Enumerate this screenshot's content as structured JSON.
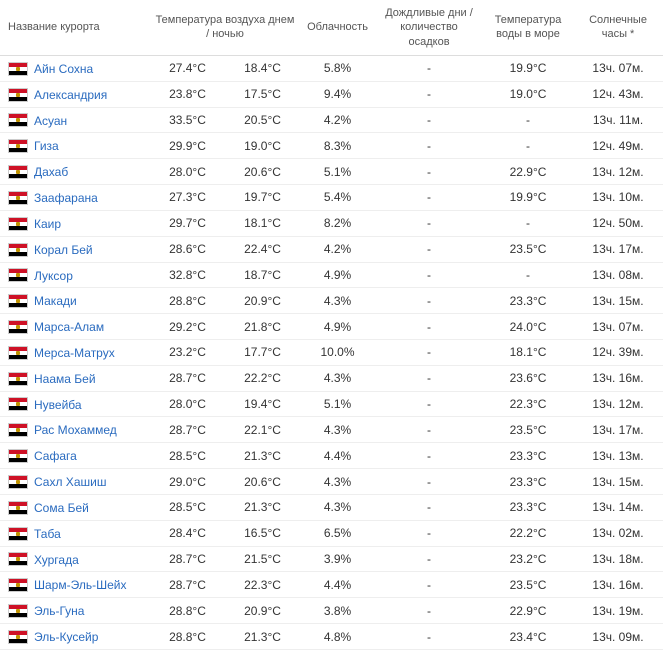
{
  "headers": {
    "name": "Название курорта",
    "temp": "Температура воздуха днем / ночью",
    "cloud": "Облачность",
    "rain": "Дождливые дни / количество осадков",
    "sea": "Температура воды в море",
    "sun": "Солнечные часы *"
  },
  "rows": [
    {
      "name": "Айн Сохна",
      "tday": "27.4°C",
      "tnight": "18.4°C",
      "cloud": "5.8%",
      "rain": "-",
      "sea": "19.9°C",
      "sun": "13ч. 07м."
    },
    {
      "name": "Александрия",
      "tday": "23.8°C",
      "tnight": "17.5°C",
      "cloud": "9.4%",
      "rain": "-",
      "sea": "19.0°C",
      "sun": "12ч. 43м."
    },
    {
      "name": "Асуан",
      "tday": "33.5°C",
      "tnight": "20.5°C",
      "cloud": "4.2%",
      "rain": "-",
      "sea": "-",
      "sun": "13ч. 11м."
    },
    {
      "name": "Гиза",
      "tday": "29.9°C",
      "tnight": "19.0°C",
      "cloud": "8.3%",
      "rain": "-",
      "sea": "-",
      "sun": "12ч. 49м."
    },
    {
      "name": "Дахаб",
      "tday": "28.0°C",
      "tnight": "20.6°C",
      "cloud": "5.1%",
      "rain": "-",
      "sea": "22.9°C",
      "sun": "13ч. 12м."
    },
    {
      "name": "Заафарана",
      "tday": "27.3°C",
      "tnight": "19.7°C",
      "cloud": "5.4%",
      "rain": "-",
      "sea": "19.9°C",
      "sun": "13ч. 10м."
    },
    {
      "name": "Каир",
      "tday": "29.7°C",
      "tnight": "18.1°C",
      "cloud": "8.2%",
      "rain": "-",
      "sea": "-",
      "sun": "12ч. 50м."
    },
    {
      "name": "Корал Бей",
      "tday": "28.6°C",
      "tnight": "22.4°C",
      "cloud": "4.2%",
      "rain": "-",
      "sea": "23.5°C",
      "sun": "13ч. 17м."
    },
    {
      "name": "Луксор",
      "tday": "32.8°C",
      "tnight": "18.7°C",
      "cloud": "4.9%",
      "rain": "-",
      "sea": "-",
      "sun": "13ч. 08м."
    },
    {
      "name": "Макади",
      "tday": "28.8°C",
      "tnight": "20.9°C",
      "cloud": "4.3%",
      "rain": "-",
      "sea": "23.3°C",
      "sun": "13ч. 15м."
    },
    {
      "name": "Марса-Алам",
      "tday": "29.2°C",
      "tnight": "21.8°C",
      "cloud": "4.9%",
      "rain": "-",
      "sea": "24.0°C",
      "sun": "13ч. 07м."
    },
    {
      "name": "Мерса-Матрух",
      "tday": "23.2°C",
      "tnight": "17.7°C",
      "cloud": "10.0%",
      "rain": "-",
      "sea": "18.1°C",
      "sun": "12ч. 39м."
    },
    {
      "name": "Наама Бей",
      "tday": "28.7°C",
      "tnight": "22.2°C",
      "cloud": "4.3%",
      "rain": "-",
      "sea": "23.6°C",
      "sun": "13ч. 16м."
    },
    {
      "name": "Нувейба",
      "tday": "28.0°C",
      "tnight": "19.4°C",
      "cloud": "5.1%",
      "rain": "-",
      "sea": "22.3°C",
      "sun": "13ч. 12м."
    },
    {
      "name": "Рас Мохаммед",
      "tday": "28.7°C",
      "tnight": "22.1°C",
      "cloud": "4.3%",
      "rain": "-",
      "sea": "23.5°C",
      "sun": "13ч. 17м."
    },
    {
      "name": "Сафага",
      "tday": "28.5°C",
      "tnight": "21.3°C",
      "cloud": "4.4%",
      "rain": "-",
      "sea": "23.3°C",
      "sun": "13ч. 13м."
    },
    {
      "name": "Сахл Хашиш",
      "tday": "29.0°C",
      "tnight": "20.6°C",
      "cloud": "4.3%",
      "rain": "-",
      "sea": "23.3°C",
      "sun": "13ч. 15м."
    },
    {
      "name": "Сома Бей",
      "tday": "28.5°C",
      "tnight": "21.3°C",
      "cloud": "4.3%",
      "rain": "-",
      "sea": "23.3°C",
      "sun": "13ч. 14м."
    },
    {
      "name": "Таба",
      "tday": "28.4°C",
      "tnight": "16.5°C",
      "cloud": "6.5%",
      "rain": "-",
      "sea": "22.2°C",
      "sun": "13ч. 02м."
    },
    {
      "name": "Хургада",
      "tday": "28.7°C",
      "tnight": "21.5°C",
      "cloud": "3.9%",
      "rain": "-",
      "sea": "23.2°C",
      "sun": "13ч. 18м."
    },
    {
      "name": "Шарм-Эль-Шейх",
      "tday": "28.7°C",
      "tnight": "22.3°C",
      "cloud": "4.4%",
      "rain": "-",
      "sea": "23.5°C",
      "sun": "13ч. 16м."
    },
    {
      "name": "Эль-Гуна",
      "tday": "28.8°C",
      "tnight": "20.9°C",
      "cloud": "3.8%",
      "rain": "-",
      "sea": "22.9°C",
      "sun": "13ч. 19м."
    },
    {
      "name": "Эль-Кусейр",
      "tday": "28.8°C",
      "tnight": "21.3°C",
      "cloud": "4.8%",
      "rain": "-",
      "sea": "23.4°C",
      "sun": "13ч. 09м."
    }
  ]
}
